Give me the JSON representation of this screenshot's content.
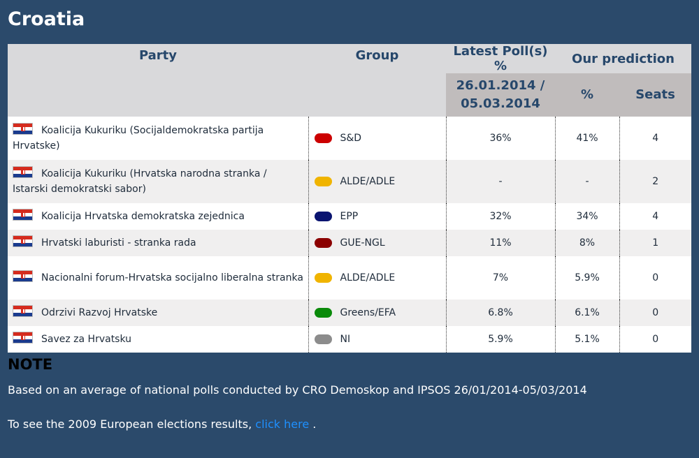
{
  "title": "Croatia",
  "header": {
    "party": "Party",
    "group": "Group",
    "latest_poll": "Latest Poll(s) %",
    "our_prediction": "Our prediction",
    "poll_dates_line1": "26.01.2014 /",
    "poll_dates_line2": "05.03.2014",
    "pct": "%",
    "seats": "Seats"
  },
  "rows": [
    {
      "party": "Koalicija Kukuriku (Socijaldemokratska partija Hrvatske)",
      "group": "S&D",
      "group_color": "#cc0000",
      "poll": "36%",
      "pred_pct": "41%",
      "seats": "4"
    },
    {
      "party": "Koalicija Kukuriku (Hrvatska narodna stranka / Istarski demokratski sabor)",
      "group": "ALDE/ADLE",
      "group_color": "#f0b400",
      "poll": "-",
      "pred_pct": "-",
      "seats": "2"
    },
    {
      "party": "Koalicija Hrvatska demokratska zejednica",
      "group": "EPP",
      "group_color": "#0a1470",
      "poll": "32%",
      "pred_pct": "34%",
      "seats": "4"
    },
    {
      "party": "Hrvatski laburisti - stranka rada",
      "group": "GUE-NGL",
      "group_color": "#8b0000",
      "poll": "11%",
      "pred_pct": "8%",
      "seats": "1"
    },
    {
      "party": "Nacionalni forum-Hrvatska socijalno liberalna stranka",
      "group": "ALDE/ADLE",
      "group_color": "#f0b400",
      "poll": "7%",
      "pred_pct": "5.9%",
      "seats": "0"
    },
    {
      "party": "Odrzivi Razvoj Hrvatske",
      "group": "Greens/EFA",
      "group_color": "#0a8a0a",
      "poll": "6.8%",
      "pred_pct": "6.1%",
      "seats": "0"
    },
    {
      "party": "Savez za Hrvatsku",
      "group": "NI",
      "group_color": "#8c8c8c",
      "poll": "5.9%",
      "pred_pct": "5.1%",
      "seats": "0"
    }
  ],
  "note": {
    "title": "NOTE",
    "text": "Based on an average of national polls conducted by CRO Demoskop and IPSOS 26/01/2014-05/03/2014",
    "link_prefix": "To see the 2009 European elections results,",
    "link_text": "click here",
    "link_suffix": "."
  }
}
